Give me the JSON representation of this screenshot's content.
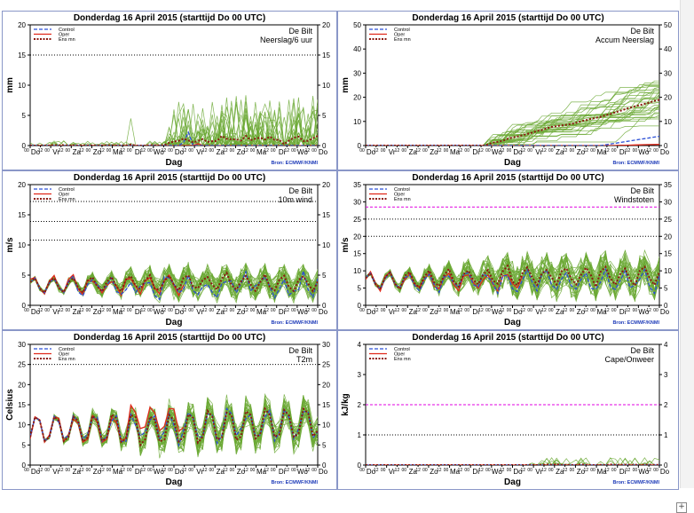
{
  "title": "Donderdag 16 April     2015  (starttijd  Do 00 UTC)",
  "xlabel": "Dag",
  "day_labels": [
    "Do",
    "Vr",
    "Za",
    "Zo",
    "Ma",
    "Di",
    "Wo",
    "Do",
    "Vr",
    "Za",
    "Zo",
    "Ma",
    "Di",
    "Wo",
    "Do"
  ],
  "source": "Bron: ECMWF/KNMI",
  "legend": [
    "Control",
    "Oper",
    "Ens mn"
  ],
  "colors": {
    "control": "#2b4fd6",
    "oper": "#e0281a",
    "ensmn": "#8b1a12",
    "members": "#6aa832",
    "threshold_black": "#000000",
    "threshold_magenta": "#e000e0"
  },
  "expand_icon": "+",
  "chart_data": [
    {
      "type": "line",
      "location": "De Bilt",
      "parameter": "Neerslag/6 uur",
      "ylabel": "mm",
      "ylim": [
        0,
        20
      ],
      "yticks": [
        0,
        5,
        10,
        15,
        20
      ],
      "thresholds": [
        {
          "y": 15,
          "color": "black"
        }
      ],
      "series_present": [
        "Control",
        "Oper",
        "Ens mn"
      ],
      "summary": {
        "ens_mn_max": 0.7,
        "member_max": 9.5,
        "oper_max": 0.3
      }
    },
    {
      "type": "line",
      "location": "De Bilt",
      "parameter": "Accum Neerslag",
      "ylabel": "mm",
      "ylim": [
        0,
        50
      ],
      "yticks": [
        0,
        10,
        20,
        30,
        40,
        50
      ],
      "thresholds": [],
      "series_present": [
        "Control",
        "Oper",
        "Ens mn"
      ],
      "summary": {
        "ens_mn_end": 16,
        "member_max_end": 38,
        "control_end": 4,
        "oper_end": 0.5
      }
    },
    {
      "type": "line",
      "location": "De Bilt",
      "parameter": "10m wind",
      "ylabel": "m/s",
      "ylim": [
        0,
        20
      ],
      "yticks": [
        0,
        5,
        10,
        15,
        20
      ],
      "thresholds": [
        {
          "y": 10.8,
          "color": "black"
        },
        {
          "y": 13.9,
          "color": "black"
        },
        {
          "y": 17.2,
          "color": "black"
        }
      ],
      "series_present": [
        "Control",
        "Oper",
        "Ens mn"
      ],
      "summary": {
        "ens_mn_range": [
          2,
          5
        ],
        "member_max": 10.5
      }
    },
    {
      "type": "line",
      "location": "De Bilt",
      "parameter": "Windstoten",
      "ylabel": "m/s",
      "ylim": [
        0,
        35
      ],
      "yticks": [
        0,
        5,
        10,
        15,
        20,
        25,
        30,
        35
      ],
      "thresholds": [
        {
          "y": 20,
          "color": "black"
        },
        {
          "y": 25,
          "color": "black"
        },
        {
          "y": 28.5,
          "color": "magenta"
        }
      ],
      "series_present": [
        "Control",
        "Oper",
        "Ens mn"
      ],
      "summary": {
        "ens_mn_range": [
          4,
          10
        ],
        "member_max": 29
      }
    },
    {
      "type": "line",
      "location": "De Bilt",
      "parameter": "T2m",
      "ylabel": "Celsius",
      "ylim": [
        0,
        30
      ],
      "yticks": [
        0,
        5,
        10,
        15,
        20,
        25,
        30
      ],
      "thresholds": [
        {
          "y": 25,
          "color": "black"
        }
      ],
      "series_present": [
        "Control",
        "Oper",
        "Ens mn"
      ],
      "summary": {
        "diurnal_min": 5,
        "diurnal_max": 20
      }
    },
    {
      "type": "line",
      "location": "De Bilt",
      "parameter": "Cape/Onweer",
      "ylabel": "kJ/kg",
      "ylim": [
        0,
        4
      ],
      "yticks": [
        0,
        1,
        2,
        3,
        4
      ],
      "thresholds": [
        {
          "y": 1,
          "color": "black"
        },
        {
          "y": 2,
          "color": "magenta"
        }
      ],
      "series_present": [
        "Control",
        "Oper",
        "Ens mn"
      ],
      "summary": {
        "member_max": 0.2
      }
    }
  ]
}
